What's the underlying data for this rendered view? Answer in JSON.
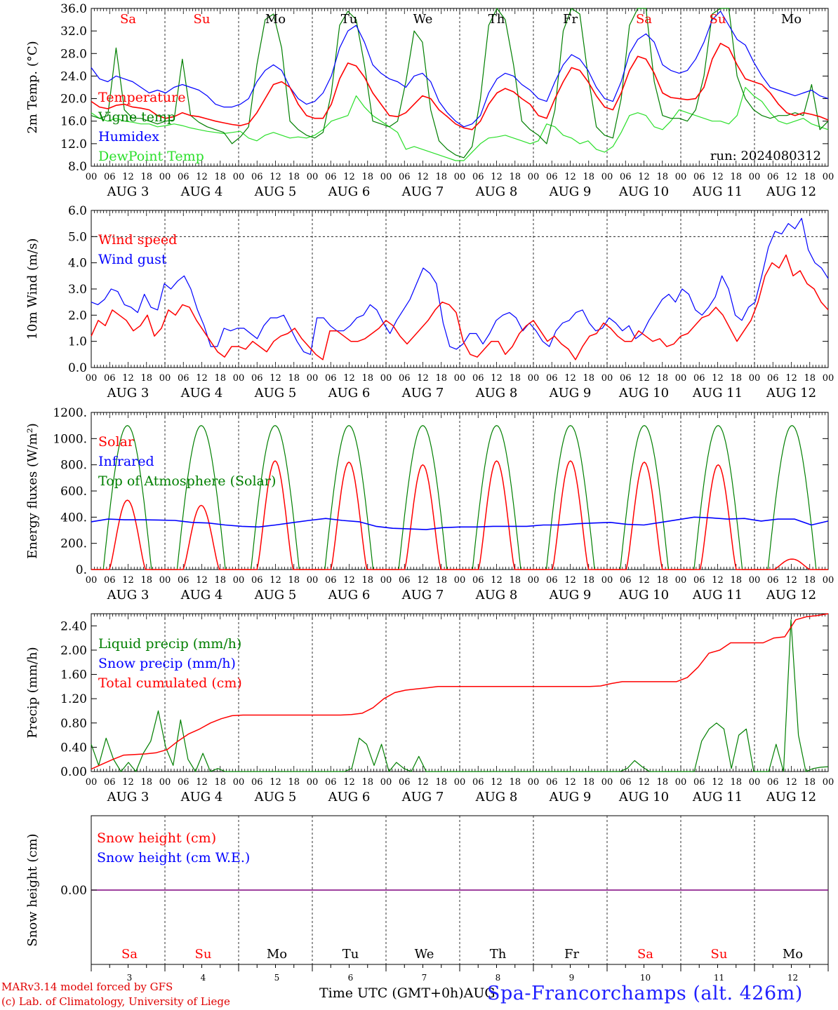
{
  "chart_data": [
    {
      "type": "line",
      "ylabel": "2m Temp. (°C)",
      "ylim": [
        8,
        36
      ],
      "yticks": [
        "8.0",
        "12.0",
        "16.0",
        "20.0",
        "24.0",
        "28.0",
        "32.0",
        "36.0"
      ],
      "annotation": "run: 2024080312",
      "grid": "dashed vertical at day boundaries",
      "series": [
        {
          "name": "Temperature",
          "color": "#ff0000",
          "values": [
            19.5,
            18.5,
            18.2,
            18.8,
            19.0,
            18.5,
            18.3,
            18.0,
            17.0,
            16.5,
            16.8,
            17.5,
            17.0,
            16.8,
            16.4,
            16.0,
            15.7,
            15.4,
            15.2,
            15.6,
            17.5,
            20.0,
            22.5,
            23.0,
            22.0,
            19.0,
            17.0,
            16.5,
            16.5,
            19.0,
            23.5,
            26.3,
            25.8,
            23.8,
            21.0,
            19.0,
            17.0,
            16.8,
            17.5,
            19.0,
            20.5,
            20.0,
            18.0,
            16.8,
            15.5,
            14.8,
            14.5,
            16.0,
            19.0,
            21.0,
            21.8,
            21.2,
            20.0,
            19.0,
            17.0,
            16.5,
            20.0,
            23.0,
            25.5,
            25.0,
            23.0,
            20.5,
            18.5,
            18.0,
            21.0,
            25.0,
            27.5,
            27.0,
            24.5,
            21.0,
            20.2,
            20.0,
            19.8,
            20.0,
            22.0,
            27.0,
            29.8,
            29.0,
            26.0,
            23.5,
            23.0,
            22.5,
            21.0,
            19.0,
            17.5,
            17.0,
            17.5,
            17.2,
            16.8,
            16.2
          ]
        },
        {
          "name": "Vigne temp",
          "color": "#007f00",
          "values": [
            17.0,
            16.5,
            17.0,
            29.0,
            18.0,
            16.5,
            16.5,
            16.0,
            15.5,
            16.0,
            16.2,
            27.0,
            17.0,
            15.8,
            15.0,
            14.5,
            14.0,
            12.0,
            13.2,
            15.0,
            26.0,
            34.0,
            35.0,
            29.0,
            16.0,
            14.5,
            13.5,
            13.0,
            14.0,
            21.0,
            33.0,
            35.5,
            34.0,
            26.0,
            16.0,
            15.5,
            15.0,
            16.0,
            23.0,
            32.0,
            30.0,
            18.0,
            12.5,
            11.0,
            10.0,
            9.5,
            11.5,
            20.0,
            33.0,
            36.0,
            34.0,
            26.0,
            16.0,
            14.5,
            13.5,
            12.0,
            18.0,
            32.0,
            36.0,
            35.0,
            24.0,
            15.0,
            13.5,
            13.0,
            20.0,
            33.0,
            36.0,
            36.0,
            23.0,
            17.0,
            16.5,
            16.5,
            16.0,
            18.0,
            24.0,
            35.0,
            36.0,
            36.0,
            24.0,
            20.0,
            18.0,
            17.0,
            16.5,
            17.0,
            17.0,
            17.5,
            17.0,
            22.5,
            14.5,
            16.0
          ]
        },
        {
          "name": "Humidex",
          "color": "#0000ff",
          "values": [
            25.5,
            23.5,
            23.0,
            24.0,
            23.5,
            23.0,
            22.0,
            21.0,
            21.5,
            21.0,
            22.0,
            22.5,
            22.0,
            21.5,
            20.5,
            19.0,
            18.5,
            18.5,
            19.0,
            20.0,
            23.0,
            25.0,
            26.0,
            25.0,
            22.0,
            20.0,
            19.0,
            19.5,
            21.0,
            24.0,
            29.0,
            32.0,
            33.0,
            30.0,
            26.0,
            24.5,
            23.5,
            23.0,
            22.0,
            24.0,
            24.5,
            23.0,
            19.5,
            17.5,
            16.0,
            15.0,
            15.5,
            17.0,
            21.0,
            23.5,
            24.5,
            24.0,
            22.5,
            21.5,
            20.0,
            19.5,
            23.0,
            26.0,
            27.8,
            27.0,
            25.0,
            22.0,
            20.0,
            19.5,
            23.0,
            28.0,
            30.5,
            31.5,
            30.0,
            26.0,
            25.0,
            24.5,
            25.0,
            27.0,
            30.0,
            34.0,
            35.5,
            33.0,
            30.5,
            29.5,
            26.5,
            24.0,
            22.0,
            21.5,
            21.0,
            20.5,
            21.0,
            21.5,
            20.5,
            20.0
          ]
        },
        {
          "name": "DewPoint Temp",
          "color": "#2adf2a",
          "values": [
            17.5,
            16.5,
            16.0,
            16.5,
            16.0,
            15.8,
            15.5,
            15.5,
            15.0,
            15.2,
            15.5,
            15.2,
            14.8,
            14.5,
            14.2,
            14.0,
            13.8,
            14.0,
            14.2,
            13.0,
            12.5,
            13.5,
            14.0,
            13.5,
            13.0,
            13.2,
            13.0,
            13.5,
            14.5,
            16.0,
            16.5,
            17.0,
            20.5,
            18.5,
            17.0,
            16.0,
            15.0,
            14.0,
            11.0,
            11.5,
            11.0,
            10.5,
            10.0,
            9.5,
            9.0,
            9.0,
            10.5,
            12.0,
            13.0,
            13.2,
            13.5,
            13.0,
            12.5,
            12.0,
            12.5,
            15.5,
            15.0,
            13.5,
            13.0,
            12.0,
            12.5,
            11.0,
            10.5,
            11.5,
            14.0,
            17.0,
            17.5,
            17.0,
            15.0,
            14.5,
            16.0,
            18.0,
            17.5,
            17.0,
            16.5,
            16.0,
            16.0,
            15.5,
            17.0,
            22.0,
            20.5,
            19.5,
            17.5,
            16.0,
            15.5,
            16.0,
            16.5,
            15.5,
            15.0,
            14.5
          ]
        }
      ]
    },
    {
      "type": "line",
      "ylabel": "10m Wind (m/s)",
      "ylim": [
        0,
        6
      ],
      "yticks": [
        "0.0",
        "1.0",
        "2.0",
        "3.0",
        "4.0",
        "5.0",
        "6.0"
      ],
      "reference_line": 5.0,
      "series": [
        {
          "name": "Wind speed",
          "color": "#ff0000",
          "values": [
            1.2,
            1.8,
            1.6,
            2.2,
            2.0,
            1.8,
            1.4,
            1.6,
            2.0,
            1.2,
            1.5,
            2.2,
            2.0,
            2.4,
            2.3,
            1.8,
            1.4,
            1.0,
            0.6,
            0.4,
            0.8,
            0.8,
            0.7,
            1.0,
            0.8,
            0.6,
            1.0,
            1.2,
            1.3,
            1.5,
            1.1,
            0.8,
            0.5,
            0.3,
            1.4,
            1.4,
            1.2,
            1.0,
            1.0,
            1.1,
            1.3,
            1.5,
            1.8,
            1.6,
            1.2,
            0.9,
            1.2,
            1.5,
            1.8,
            2.2,
            2.5,
            2.4,
            2.1,
            1.0,
            0.5,
            0.4,
            0.7,
            1.0,
            1.0,
            0.5,
            0.8,
            1.3,
            1.6,
            1.8,
            1.4,
            1.0,
            1.2,
            0.9,
            0.7,
            0.3,
            0.8,
            1.2,
            1.3,
            1.7,
            1.5,
            1.2,
            1.0,
            1.0,
            1.4,
            1.2,
            1.0,
            1.1,
            0.8,
            0.9,
            1.2,
            1.3,
            1.6,
            1.9,
            2.0,
            2.3,
            2.0,
            1.5,
            1.0,
            1.4,
            1.8,
            2.5,
            3.5,
            4.0,
            3.8,
            4.3,
            3.5,
            3.7,
            3.2,
            3.0,
            2.5,
            2.2
          ]
        },
        {
          "name": "Wind gust",
          "color": "#0000ff",
          "values": [
            2.5,
            2.4,
            2.6,
            3.0,
            2.9,
            2.4,
            2.3,
            2.1,
            2.8,
            2.3,
            2.2,
            3.2,
            3.0,
            3.3,
            3.5,
            3.0,
            2.2,
            1.6,
            0.8,
            0.8,
            1.5,
            1.4,
            1.5,
            1.5,
            1.3,
            1.1,
            1.6,
            1.9,
            1.9,
            2.0,
            1.5,
            1.0,
            0.6,
            0.5,
            1.9,
            1.9,
            1.6,
            1.4,
            1.4,
            1.6,
            1.9,
            2.0,
            2.4,
            2.2,
            1.7,
            1.3,
            1.8,
            2.2,
            2.6,
            3.2,
            3.8,
            3.6,
            3.2,
            1.7,
            0.8,
            0.7,
            0.9,
            1.3,
            1.3,
            0.9,
            1.3,
            1.8,
            2.0,
            2.1,
            1.9,
            1.4,
            1.7,
            1.4,
            1.0,
            0.8,
            1.4,
            1.7,
            1.8,
            2.1,
            2.2,
            1.7,
            1.4,
            1.5,
            1.9,
            1.7,
            1.4,
            1.6,
            1.1,
            1.3,
            1.8,
            2.2,
            2.6,
            2.8,
            2.5,
            3.0,
            2.8,
            2.2,
            2.0,
            2.3,
            2.7,
            3.5,
            3.0,
            2.0,
            1.8,
            2.3,
            2.5,
            3.5,
            4.6,
            5.2,
            5.1,
            5.5,
            5.3,
            5.7,
            4.5,
            4.0,
            3.8,
            3.4
          ]
        }
      ]
    },
    {
      "type": "line",
      "ylabel": "Energy fluxes (W/m²)",
      "ylim": [
        0,
        1200
      ],
      "yticks": [
        "0.",
        "200.",
        "400.",
        "600.",
        "800.",
        "1000.",
        "1200."
      ],
      "series": [
        {
          "name": "Solar",
          "color": "#ff0000",
          "peaks": [
            530,
            490,
            830,
            820,
            800,
            830,
            830,
            820,
            800,
            80
          ]
        },
        {
          "name": "Infrared",
          "color": "#0000ff",
          "values": [
            365,
            385,
            380,
            380,
            378,
            375,
            360,
            355,
            340,
            330,
            325,
            340,
            358,
            375,
            390,
            375,
            365,
            330,
            315,
            310,
            305,
            320,
            325,
            325,
            330,
            330,
            330,
            340,
            340,
            350,
            355,
            360,
            345,
            340,
            360,
            380,
            400,
            395,
            385,
            390,
            370,
            385,
            385,
            340,
            370
          ]
        },
        {
          "name": "Top of Atmosphere (Solar)",
          "color": "#007f00",
          "peak": 1100
        }
      ]
    },
    {
      "type": "line",
      "ylabel": "Precip (mm/h)",
      "ylim": [
        0,
        2.6
      ],
      "yticks": [
        "0.00",
        "0.40",
        "0.80",
        "1.20",
        "1.60",
        "2.00",
        "2.40"
      ],
      "series": [
        {
          "name": "Liquid precip (mm/h)",
          "color": "#007f00",
          "values": [
            0.45,
            0.1,
            0.55,
            0.2,
            0.0,
            0.15,
            0.0,
            0.3,
            0.5,
            1.0,
            0.4,
            0.1,
            0.85,
            0.2,
            0.0,
            0.3,
            0.0,
            0.05,
            0,
            0,
            0,
            0,
            0,
            0,
            0,
            0,
            0,
            0,
            0,
            0,
            0,
            0,
            0,
            0,
            0,
            0.05,
            0.55,
            0.45,
            0.1,
            0.45,
            0.0,
            0.15,
            0.05,
            0.0,
            0.25,
            0,
            0,
            0,
            0,
            0,
            0,
            0,
            0,
            0,
            0,
            0,
            0,
            0,
            0,
            0,
            0,
            0,
            0,
            0,
            0,
            0,
            0,
            0,
            0,
            0,
            0,
            0,
            0.05,
            0.18,
            0.08,
            0,
            0,
            0,
            0,
            0,
            0,
            0,
            0.5,
            0.7,
            0.8,
            0.7,
            0.05,
            0.6,
            0.7,
            0.0,
            0,
            0,
            0.45,
            0.0,
            2.5,
            0.6,
            0.0,
            0.05,
            0.07,
            0.08
          ]
        },
        {
          "name": "Snow precip (mm/h)",
          "color": "#0000ff",
          "values": [
            0
          ]
        },
        {
          "name": "Total cumulated (cm)",
          "color": "#ff0000",
          "values": [
            0.04,
            0.12,
            0.2,
            0.27,
            0.28,
            0.29,
            0.31,
            0.36,
            0.5,
            0.62,
            0.7,
            0.8,
            0.87,
            0.92,
            0.93,
            0.93,
            0.93,
            0.93,
            0.93,
            0.93,
            0.93,
            0.93,
            0.93,
            0.93,
            0.94,
            0.96,
            1.05,
            1.2,
            1.3,
            1.34,
            1.36,
            1.38,
            1.4,
            1.4,
            1.4,
            1.4,
            1.4,
            1.4,
            1.4,
            1.4,
            1.4,
            1.4,
            1.4,
            1.4,
            1.4,
            1.4,
            1.4,
            1.41,
            1.45,
            1.48,
            1.48,
            1.48,
            1.48,
            1.48,
            1.48,
            1.55,
            1.72,
            1.95,
            2.0,
            2.12,
            2.12,
            2.12,
            2.12,
            2.2,
            2.22,
            2.5,
            2.55,
            2.57,
            2.6
          ]
        }
      ]
    },
    {
      "type": "line",
      "ylabel": "Snow height (cm)",
      "yticks": [
        "0.00"
      ],
      "series": [
        {
          "name": "Snow height (cm)",
          "color": "#ff0000",
          "values": [
            0
          ]
        },
        {
          "name": "Snow height (cm W.E.)",
          "color": "#0000ff",
          "values": [
            0
          ]
        }
      ]
    }
  ],
  "days": [
    {
      "abbr": "Sa",
      "num": "3",
      "label": "AUG  3",
      "weekend": true
    },
    {
      "abbr": "Su",
      "num": "4",
      "label": "AUG  4",
      "weekend": true
    },
    {
      "abbr": "Mo",
      "num": "5",
      "label": "AUG  5",
      "weekend": false
    },
    {
      "abbr": "Tu",
      "num": "6",
      "label": "AUG  6",
      "weekend": false
    },
    {
      "abbr": "We",
      "num": "7",
      "label": "AUG  7",
      "weekend": false
    },
    {
      "abbr": "Th",
      "num": "8",
      "label": "AUG  8",
      "weekend": false
    },
    {
      "abbr": "Fr",
      "num": "9",
      "label": "AUG  9",
      "weekend": false
    },
    {
      "abbr": "Sa",
      "num": "10",
      "label": "AUG 10",
      "weekend": true
    },
    {
      "abbr": "Su",
      "num": "11",
      "label": "AUG 11",
      "weekend": true
    },
    {
      "abbr": "Mo",
      "num": "12",
      "label": "AUG 12",
      "weekend": false
    }
  ],
  "hour_ticks": [
    "00",
    "06",
    "12",
    "18"
  ],
  "footer": {
    "credit_line1": "MARv3.14 model forced by GFS",
    "credit_line2": "(c) Lab. of Climatology, University of Liege",
    "time_label": "Time UTC (GMT+0h)AUG",
    "station": "Spa-Francorchamps (alt. 426m)"
  }
}
